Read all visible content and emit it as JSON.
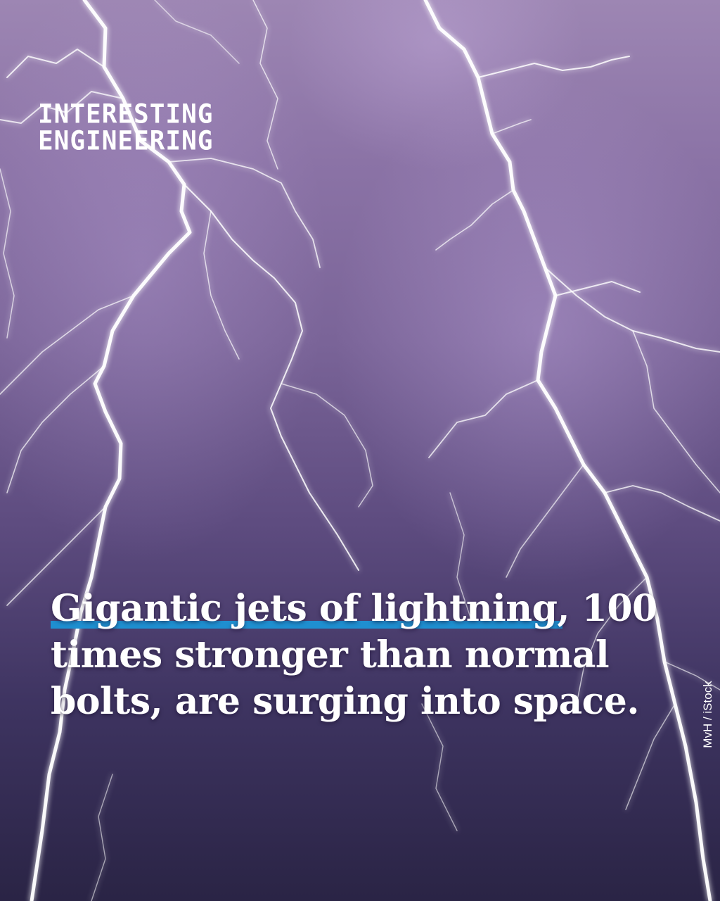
{
  "brand": {
    "line1": "INTERESTING",
    "line2": "ENGINEERING"
  },
  "headline": {
    "line1": "Gigantic jets of lightning, 100",
    "line2": "times stronger than normal",
    "line3": "bolts, are surging into space.",
    "highlight_color": "#1f8fd0"
  },
  "credit": "MvH / iStock",
  "colors": {
    "sky_top": "#9d86b3",
    "sky_bottom": "#2a2445",
    "text": "#ffffff"
  }
}
